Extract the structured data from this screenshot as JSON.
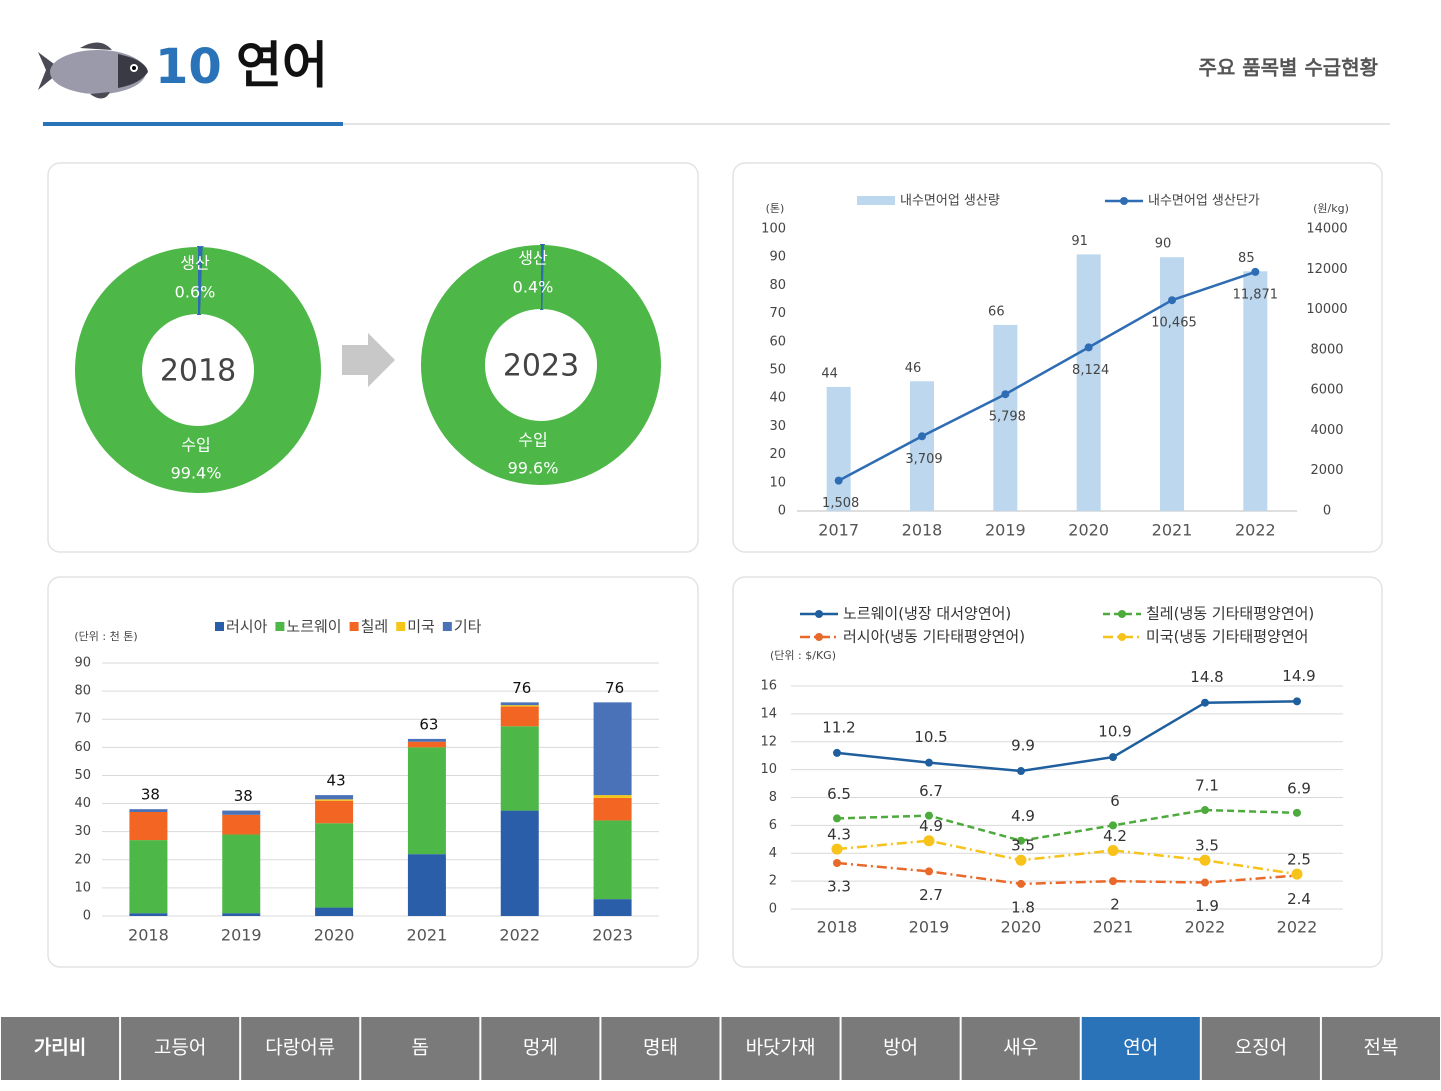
{
  "header": {
    "number": "10",
    "title": "연어",
    "subtitle": "주요 품목별 수급현황"
  },
  "chart_data": [
    {
      "type": "donut",
      "categories": [
        "생산",
        "수입"
      ],
      "colors": [
        "#2e6bb0",
        "#4db848"
      ],
      "donuts": [
        {
          "center": "2018",
          "values": [
            0.6,
            99.4
          ],
          "value_labels": [
            "0.6%",
            "99.4%"
          ]
        },
        {
          "center": "2023",
          "values": [
            0.4,
            99.6
          ],
          "value_labels": [
            "0.4%",
            "99.6%"
          ]
        }
      ]
    },
    {
      "type": "bar_line",
      "ylabel": "(톤)",
      "y2label": "(원/kg)",
      "categories": [
        "2017",
        "2018",
        "2019",
        "2020",
        "2021",
        "2022"
      ],
      "series": [
        {
          "name": "내수면어업 생산량",
          "type": "bar",
          "color": "#bdd7ee",
          "values": [
            44,
            46,
            66,
            91,
            90,
            85
          ]
        },
        {
          "name": "내수면어업 생산단가",
          "type": "line",
          "axis": "y2",
          "color": "#2e6db4",
          "values": [
            1508,
            3709,
            5798,
            8124,
            10465,
            11871
          ],
          "value_labels": [
            "1,508",
            "3,709",
            "5,798",
            "8,124",
            "10,465",
            "11,871"
          ]
        }
      ],
      "ylim": [
        0,
        100
      ],
      "yticks": [
        0,
        10,
        20,
        30,
        40,
        50,
        60,
        70,
        80,
        90,
        100
      ],
      "y2lim": [
        0,
        14000
      ],
      "y2ticks": [
        0,
        2000,
        4000,
        6000,
        8000,
        10000,
        12000,
        14000
      ],
      "grid": false
    },
    {
      "type": "stacked_bar",
      "ylabel": "(단위 : 천 톤)",
      "categories": [
        "2018",
        "2019",
        "2020",
        "2021",
        "2022",
        "2023"
      ],
      "series": [
        {
          "name": "러시아",
          "color": "#2a5ea8",
          "values": [
            1,
            1,
            3,
            22,
            37.5,
            6
          ]
        },
        {
          "name": "노르웨이",
          "color": "#4db848",
          "values": [
            26,
            28,
            30,
            38,
            30,
            28
          ]
        },
        {
          "name": "칠레",
          "color": "#f26522",
          "values": [
            10,
            7,
            8,
            2,
            7,
            8
          ]
        },
        {
          "name": "미국",
          "color": "#f5c518",
          "values": [
            0,
            0,
            0.5,
            0,
            0.5,
            1
          ]
        },
        {
          "name": "기타",
          "color": "#4a72b8",
          "values": [
            1,
            1.5,
            1.5,
            1,
            1,
            33
          ]
        }
      ],
      "totals": [
        38,
        38,
        43,
        63,
        76,
        76
      ],
      "ylim": [
        0,
        90
      ],
      "yticks": [
        0,
        10,
        20,
        30,
        40,
        50,
        60,
        70,
        80,
        90
      ],
      "grid": true
    },
    {
      "type": "line",
      "ylabel": "(단위 : $/KG)",
      "categories": [
        "2018",
        "2019",
        "2020",
        "2021",
        "2022",
        "2022"
      ],
      "series": [
        {
          "name": "노르웨이(냉장 대서양연어)",
          "color": "#1f5f9e",
          "dash": "solid",
          "values": [
            11.2,
            10.5,
            9.9,
            10.9,
            14.8,
            14.9
          ]
        },
        {
          "name": "러시아(냉동 기타태평양연어)",
          "color": "#e8692a",
          "dash": "dashdot",
          "values": [
            3.3,
            2.7,
            1.8,
            2,
            1.9,
            2.4
          ]
        },
        {
          "name": "칠레(냉동 기타태평양연어)",
          "color": "#4daa3c",
          "dash": "dash",
          "values": [
            6.5,
            6.7,
            4.9,
            6,
            7.1,
            6.9
          ]
        },
        {
          "name": "미국(냉동 기타태평양연어",
          "color": "#f7c31a",
          "dash": "dashdot",
          "values": [
            4.3,
            4.9,
            3.5,
            4.2,
            3.5,
            2.5
          ]
        }
      ],
      "ylim": [
        0,
        16
      ],
      "yticks": [
        0,
        2,
        4,
        6,
        8,
        10,
        12,
        14,
        16
      ],
      "grid": true
    }
  ],
  "nav": {
    "tabs": [
      "가리비",
      "고등어",
      "다랑어류",
      "돔",
      "멍게",
      "명태",
      "바닷가재",
      "방어",
      "새우",
      "연어",
      "오징어",
      "전복"
    ],
    "active": 9
  }
}
